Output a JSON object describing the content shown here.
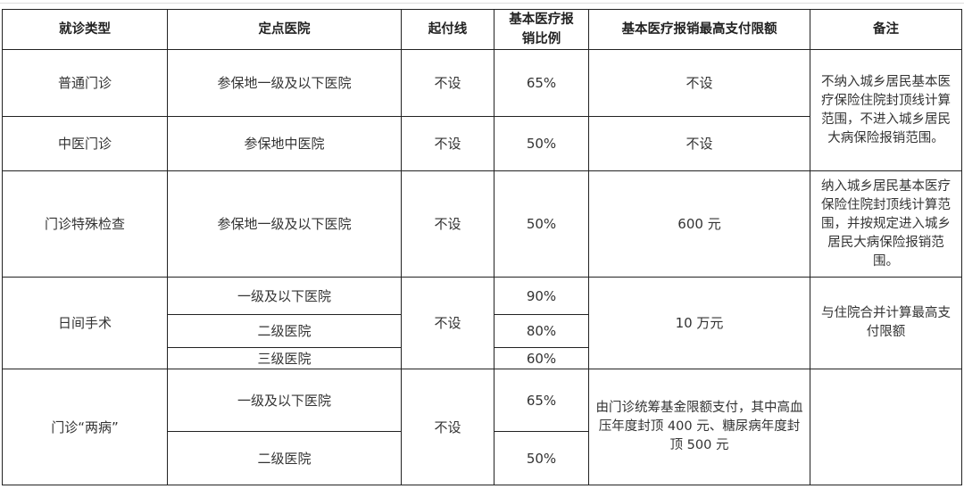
{
  "headers": [
    "就诊类型",
    "定点医院",
    "起付线",
    "基本医疗报销比例",
    "基本医疗报销最高支付限额",
    "备注"
  ],
  "rows": {
    "general": {
      "type": "普通门诊",
      "hospital": "参保地一级及以下医院",
      "threshold": "不设",
      "ratio": "65%",
      "limit": "不设"
    },
    "tcm": {
      "type": "中医门诊",
      "hospital": "参保地中医院",
      "threshold": "不设",
      "ratio": "50%",
      "limit": "不设"
    },
    "note_1": "不纳入城乡居民基本医疗保险住院封顶线计算范围，不进入城乡居民大病保险报销范围。",
    "special": {
      "type": "门诊特殊检查",
      "hospital": "参保地一级及以下医院",
      "threshold": "不设",
      "ratio": "50%",
      "limit": "600 元",
      "note": "纳入城乡居民基本医疗保险住院封顶线计算范围，并按规定进入城乡居民大病保险报销范围。"
    },
    "day_surgery": {
      "type": "日间手术",
      "threshold": "不设",
      "limit": "10 万元",
      "note": "与住院合并计算最高支付限额",
      "sub": [
        {
          "hospital": "一级及以下医院",
          "ratio": "90%"
        },
        {
          "hospital": "二级医院",
          "ratio": "80%"
        },
        {
          "hospital": "三级医院",
          "ratio": "60%"
        }
      ]
    },
    "two_diseases": {
      "type": "门诊“两病”",
      "threshold": "不设",
      "limit": "由门诊统筹基金限额支付，其中高血压年度封顶 400 元、糖尿病年度封顶 500 元",
      "note": "",
      "sub": [
        {
          "hospital": "一级及以下医院",
          "ratio": "65%"
        },
        {
          "hospital": "二级医院",
          "ratio": "50%"
        }
      ]
    }
  }
}
